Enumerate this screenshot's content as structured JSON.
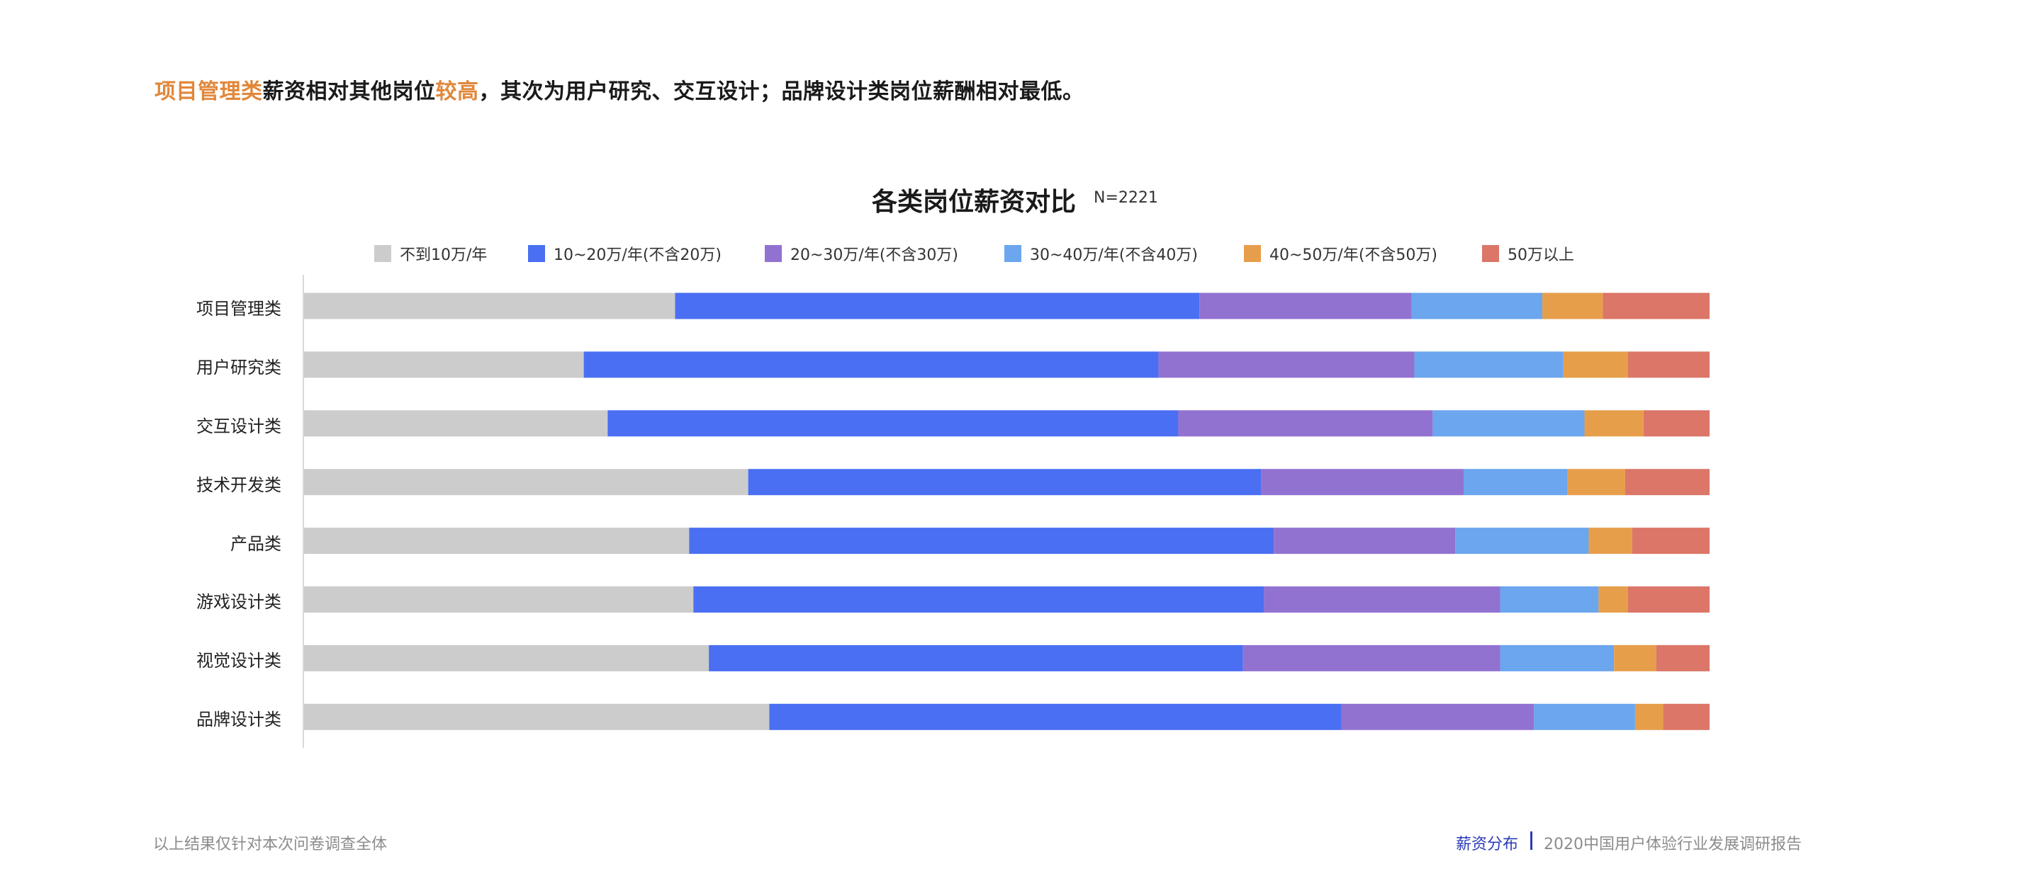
{
  "headline": {
    "part1": "项目管理类",
    "part2": "薪资相对其他岗位",
    "part3": "较高",
    "part4": "，其次为用户研究、交互设计；品牌设计类岗位薪酬相对最低。"
  },
  "colors": {
    "highlight": "#e1873b",
    "text": "#1a1a1a",
    "footer_accent": "#2a3bb8",
    "footer_muted": "#8c8c8c"
  },
  "chart_data": {
    "type": "bar",
    "orientation": "horizontal",
    "stacked": true,
    "normalized": true,
    "title": "各类岗位薪资对比",
    "sample_note": "N=2221",
    "categories": [
      "项目管理类",
      "用户研究类",
      "交互设计类",
      "技术开发类",
      "产品类",
      "游戏设计类",
      "视觉设计类",
      "品牌设计类"
    ],
    "series": [
      {
        "name": "不到10万/年",
        "color": "#cccccc",
        "values": [
          26.4,
          19.9,
          21.6,
          31.6,
          27.4,
          27.7,
          28.8,
          33.1
        ]
      },
      {
        "name": "10~20万/年(不含20万)",
        "color": "#4a6ff2",
        "values": [
          37.3,
          40.9,
          40.6,
          36.5,
          41.6,
          40.6,
          38.0,
          40.7
        ]
      },
      {
        "name": "20~30万/年(不含30万)",
        "color": "#9272d1",
        "values": [
          15.1,
          18.2,
          18.1,
          14.4,
          12.9,
          16.8,
          18.3,
          13.7
        ]
      },
      {
        "name": "30~40万/年(不含40万)",
        "color": "#6ba6ee",
        "values": [
          9.3,
          10.6,
          10.8,
          7.4,
          9.5,
          7.0,
          8.1,
          7.2
        ]
      },
      {
        "name": "40~50万/年(不含50万)",
        "color": "#e79e4b",
        "values": [
          4.3,
          4.6,
          4.2,
          4.1,
          3.1,
          2.1,
          3.0,
          2.0
        ]
      },
      {
        "name": "50万以上",
        "color": "#db7668",
        "values": [
          7.6,
          5.8,
          4.7,
          6.0,
          5.5,
          5.8,
          3.8,
          3.3
        ]
      }
    ],
    "xlim": [
      0,
      100
    ],
    "grid": false,
    "legend_position": "top"
  },
  "footer": {
    "note": "以上结果仅针对本次问卷调查全体",
    "section": "薪资分布",
    "report": "2020中国用户体验行业发展调研报告"
  }
}
